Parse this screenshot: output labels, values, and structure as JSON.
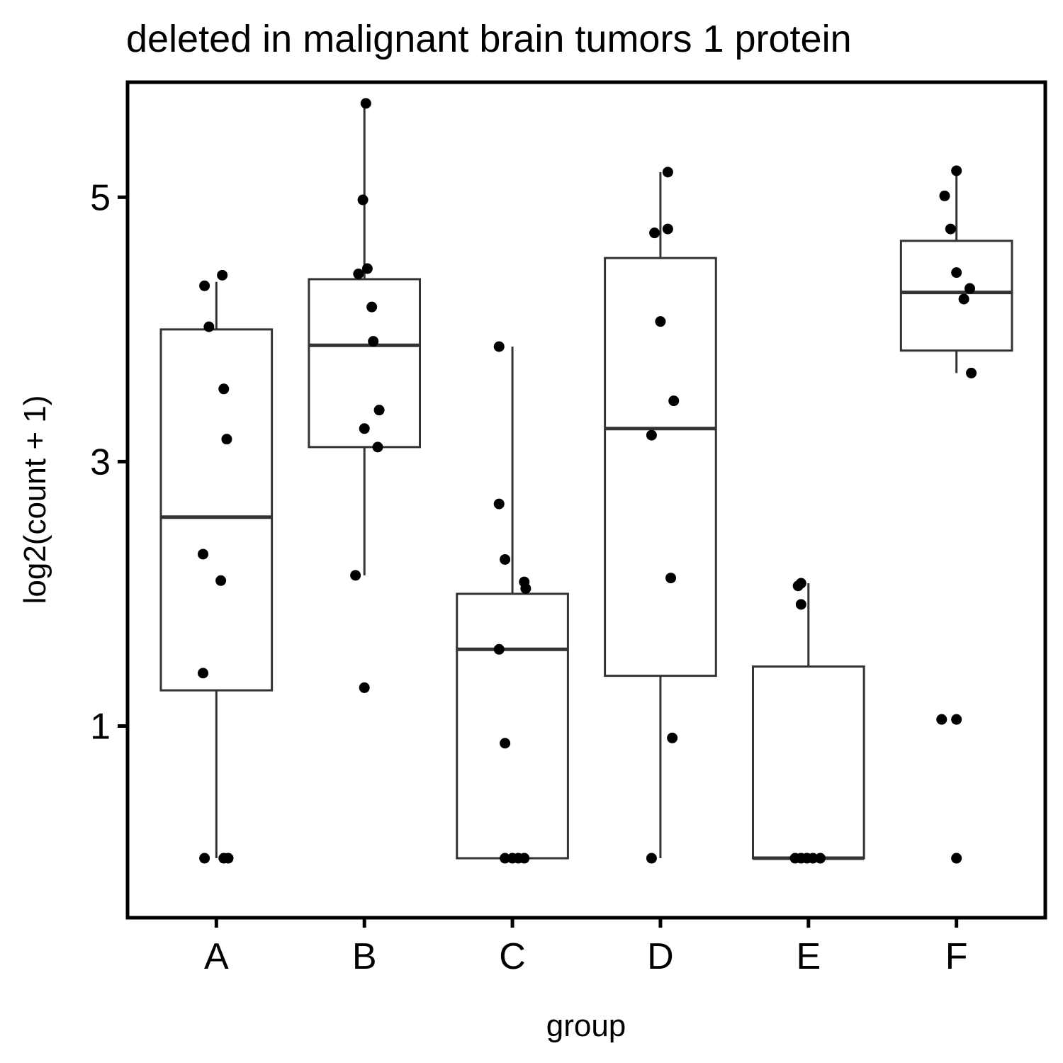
{
  "chart_data": {
    "type": "boxplot",
    "title": "deleted in malignant brain tumors 1 protein",
    "xlabel": "group",
    "ylabel": "log2(count + 1)",
    "y_ticks": [
      1,
      3,
      5
    ],
    "ylim": [
      -0.45,
      5.87
    ],
    "grid": false,
    "legend": "none",
    "categories": [
      "A",
      "B",
      "C",
      "D",
      "E",
      "F"
    ],
    "boxes": [
      {
        "group": "A",
        "whisker_low": 0.0,
        "q1": 1.27,
        "median": 2.58,
        "q3": 4.0,
        "whisker_high": 4.36
      },
      {
        "group": "B",
        "whisker_low": 2.14,
        "q1": 3.11,
        "median": 3.88,
        "q3": 4.38,
        "whisker_high": 5.71
      },
      {
        "group": "C",
        "whisker_low": 0.0,
        "q1": 0.0,
        "median": 1.58,
        "q3": 2.0,
        "whisker_high": 3.87
      },
      {
        "group": "D",
        "whisker_low": 0.0,
        "q1": 1.38,
        "median": 3.25,
        "q3": 4.54,
        "whisker_high": 5.19
      },
      {
        "group": "E",
        "whisker_low": 0.0,
        "q1": 0.0,
        "median": 0.0,
        "q3": 1.45,
        "whisker_high": 2.08
      },
      {
        "group": "F",
        "whisker_low": 3.67,
        "q1": 3.84,
        "median": 4.28,
        "q3": 4.67,
        "whisker_high": 5.2
      }
    ],
    "points": [
      {
        "group": "A",
        "x": -0.08,
        "y": 4.33
      },
      {
        "group": "A",
        "x": 0.04,
        "y": 4.41
      },
      {
        "group": "A",
        "x": -0.05,
        "y": 4.02
      },
      {
        "group": "A",
        "x": 0.05,
        "y": 3.55
      },
      {
        "group": "A",
        "x": 0.07,
        "y": 3.17
      },
      {
        "group": "A",
        "x": -0.09,
        "y": 2.3
      },
      {
        "group": "A",
        "x": 0.03,
        "y": 2.1
      },
      {
        "group": "A",
        "x": -0.09,
        "y": 1.4
      },
      {
        "group": "A",
        "x": -0.08,
        "y": 0.0
      },
      {
        "group": "A",
        "x": 0.05,
        "y": 0.0
      },
      {
        "group": "A",
        "x": 0.08,
        "y": 0.0
      },
      {
        "group": "B",
        "x": 0.01,
        "y": 5.71
      },
      {
        "group": "B",
        "x": -0.01,
        "y": 4.98
      },
      {
        "group": "B",
        "x": -0.04,
        "y": 4.42
      },
      {
        "group": "B",
        "x": 0.02,
        "y": 4.46
      },
      {
        "group": "B",
        "x": 0.05,
        "y": 4.17
      },
      {
        "group": "B",
        "x": 0.06,
        "y": 3.91
      },
      {
        "group": "B",
        "x": 0.1,
        "y": 3.39
      },
      {
        "group": "B",
        "x": 0.0,
        "y": 3.25
      },
      {
        "group": "B",
        "x": 0.09,
        "y": 3.11
      },
      {
        "group": "B",
        "x": -0.06,
        "y": 2.14
      },
      {
        "group": "B",
        "x": 0.0,
        "y": 1.29
      },
      {
        "group": "C",
        "x": -0.09,
        "y": 3.87
      },
      {
        "group": "C",
        "x": -0.09,
        "y": 2.68
      },
      {
        "group": "C",
        "x": -0.05,
        "y": 2.26
      },
      {
        "group": "C",
        "x": 0.08,
        "y": 2.09
      },
      {
        "group": "C",
        "x": 0.09,
        "y": 2.04
      },
      {
        "group": "C",
        "x": -0.09,
        "y": 1.58
      },
      {
        "group": "C",
        "x": -0.05,
        "y": 0.87
      },
      {
        "group": "C",
        "x": -0.05,
        "y": 0.0
      },
      {
        "group": "C",
        "x": 0.0,
        "y": 0.0
      },
      {
        "group": "C",
        "x": 0.04,
        "y": 0.0
      },
      {
        "group": "C",
        "x": 0.08,
        "y": 0.0
      },
      {
        "group": "D",
        "x": 0.05,
        "y": 5.19
      },
      {
        "group": "D",
        "x": -0.04,
        "y": 4.73
      },
      {
        "group": "D",
        "x": 0.05,
        "y": 4.76
      },
      {
        "group": "D",
        "x": 0.0,
        "y": 4.06
      },
      {
        "group": "D",
        "x": 0.09,
        "y": 3.46
      },
      {
        "group": "D",
        "x": -0.06,
        "y": 3.2
      },
      {
        "group": "D",
        "x": 0.07,
        "y": 2.12
      },
      {
        "group": "D",
        "x": 0.08,
        "y": 0.91
      },
      {
        "group": "D",
        "x": -0.06,
        "y": 0.0
      },
      {
        "group": "E",
        "x": -0.07,
        "y": 2.06
      },
      {
        "group": "E",
        "x": -0.05,
        "y": 2.08
      },
      {
        "group": "E",
        "x": -0.05,
        "y": 1.92
      },
      {
        "group": "E",
        "x": -0.09,
        "y": 0.0
      },
      {
        "group": "E",
        "x": -0.05,
        "y": 0.0
      },
      {
        "group": "E",
        "x": -0.01,
        "y": 0.0
      },
      {
        "group": "E",
        "x": 0.03,
        "y": 0.0
      },
      {
        "group": "E",
        "x": 0.08,
        "y": 0.0
      },
      {
        "group": "F",
        "x": -0.08,
        "y": 5.01
      },
      {
        "group": "F",
        "x": 0.0,
        "y": 5.2
      },
      {
        "group": "F",
        "x": -0.04,
        "y": 4.76
      },
      {
        "group": "F",
        "x": 0.0,
        "y": 4.43
      },
      {
        "group": "F",
        "x": 0.09,
        "y": 4.31
      },
      {
        "group": "F",
        "x": 0.05,
        "y": 4.23
      },
      {
        "group": "F",
        "x": 0.1,
        "y": 3.67
      },
      {
        "group": "F",
        "x": -0.1,
        "y": 1.05
      },
      {
        "group": "F",
        "x": 0.0,
        "y": 1.05
      },
      {
        "group": "F",
        "x": 0.0,
        "y": 0.0
      }
    ]
  }
}
